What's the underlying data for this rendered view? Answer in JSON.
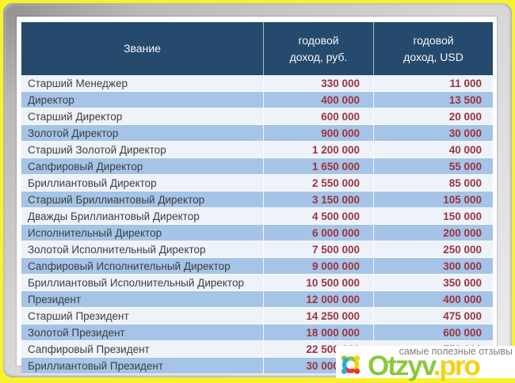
{
  "table": {
    "headers": {
      "rank": "Звание",
      "rub": "годовой\nдоход, руб.",
      "usd": "годовой\nдоход, USD"
    },
    "rows": [
      {
        "rank": "Старший Менеджер",
        "rub": "330 000",
        "usd": "11 000"
      },
      {
        "rank": "Директор",
        "rub": "400 000",
        "usd": "13 500"
      },
      {
        "rank": "Старший Директор",
        "rub": "600 000",
        "usd": "20 000"
      },
      {
        "rank": "Золотой Директор",
        "rub": "900 000",
        "usd": "30 000"
      },
      {
        "rank": "Старший Золотой Директор",
        "rub": "1 200 000",
        "usd": "40 000"
      },
      {
        "rank": "Сапфировый Директор",
        "rub": "1 650 000",
        "usd": "55 000"
      },
      {
        "rank": "Бриллиантовый Директор",
        "rub": "2 550 000",
        "usd": "85 000"
      },
      {
        "rank": "Старший Бриллиантовый Директор",
        "rub": "3 150 000",
        "usd": "105 000"
      },
      {
        "rank": "Дважды Бриллиантовый Директор",
        "rub": "4 500 000",
        "usd": "150 000"
      },
      {
        "rank": "Исполнительный Директор",
        "rub": "6 000 000",
        "usd": "200 000"
      },
      {
        "rank": "Золотой Исполнительный Директор",
        "rub": "7 500 000",
        "usd": "250 000"
      },
      {
        "rank": "Сапфировый Исполнительный Директор",
        "rub": "9 000 000",
        "usd": "300 000"
      },
      {
        "rank": "Бриллиантовый Исполнительный Директор",
        "rub": "10 500 000",
        "usd": "350 000"
      },
      {
        "rank": "Президент",
        "rub": "12 000 000",
        "usd": "400 000"
      },
      {
        "rank": "Старший Президент",
        "rub": "14 250 000",
        "usd": "475 000"
      },
      {
        "rank": "Золотой Президент",
        "rub": "18 000 000",
        "usd": "600 000"
      },
      {
        "rank": "Сапфировый Президент",
        "rub": "22 500 000",
        "usd": "750 000"
      },
      {
        "rank": "Бриллиантовый Президент",
        "rub": "30 000 000",
        "usd": ""
      }
    ]
  },
  "watermark": {
    "tagline": "самые полезные отзывы",
    "logo_part1": "Otzyv",
    "logo_part2": ".pro"
  },
  "colors": {
    "outer_border": "#f8f22e",
    "header_bg": "#264a6d",
    "row_blue": "#a5c4e7",
    "row_light": "#eef2f9",
    "rank_text": "#3d3f41",
    "number_text": "#9e3340",
    "logo_green": "#8cc63e",
    "logo_yellow": "#f5d115",
    "icon_blue": "#2aa9df",
    "icon_red": "#e6372d"
  }
}
